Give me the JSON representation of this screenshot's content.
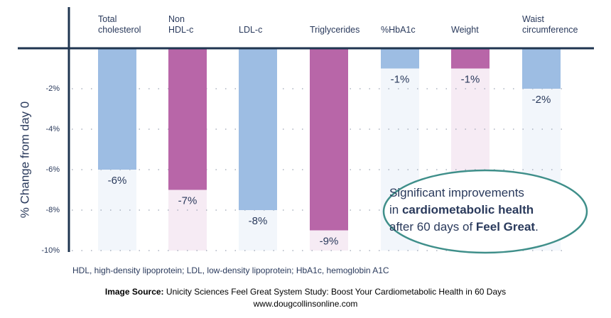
{
  "chart_data": {
    "type": "bar",
    "y_label": "% Change from day 0",
    "categories": [
      "Total\ncholesterol",
      "Non\nHDL-c",
      "LDL-c",
      "Triglycerides",
      "%HbA1c",
      "Weight",
      "Waist\ncircumference"
    ],
    "values": [
      -6,
      -7,
      -8,
      -9,
      -1,
      -1,
      -2
    ],
    "value_labels": [
      "-6%",
      "-7%",
      "-8%",
      "-9%",
      "-1%",
      "-1%",
      "-2%"
    ],
    "colors": [
      "#9dbde3",
      "#b866a8",
      "#9dbde3",
      "#b866a8",
      "#9dbde3",
      "#b866a8",
      "#9dbde3"
    ],
    "ylim": [
      -10,
      0
    ],
    "yticks": [
      {
        "value": -2,
        "label": "-2%"
      },
      {
        "value": -4,
        "label": "-4%"
      },
      {
        "value": -6,
        "label": "-6%"
      },
      {
        "value": -8,
        "label": "-8%"
      },
      {
        "value": -10,
        "label": "-10%"
      }
    ],
    "grid": true,
    "annotation": [
      "Significant improvements",
      "in ",
      "cardiometabolic health",
      "after 60 days of ",
      "Feel Great",
      "."
    ],
    "footnote": "HDL, high-density lipoprotein; LDL, low-density lipoprotein; HbA1c, hemoglobin A1C",
    "source_label": "Image Source:",
    "source": " Unicity Sciences Feel Great System Study: Boost Your Cardiometabolic Health in 60 Days",
    "website": "www.dougcollinsonline.com"
  }
}
